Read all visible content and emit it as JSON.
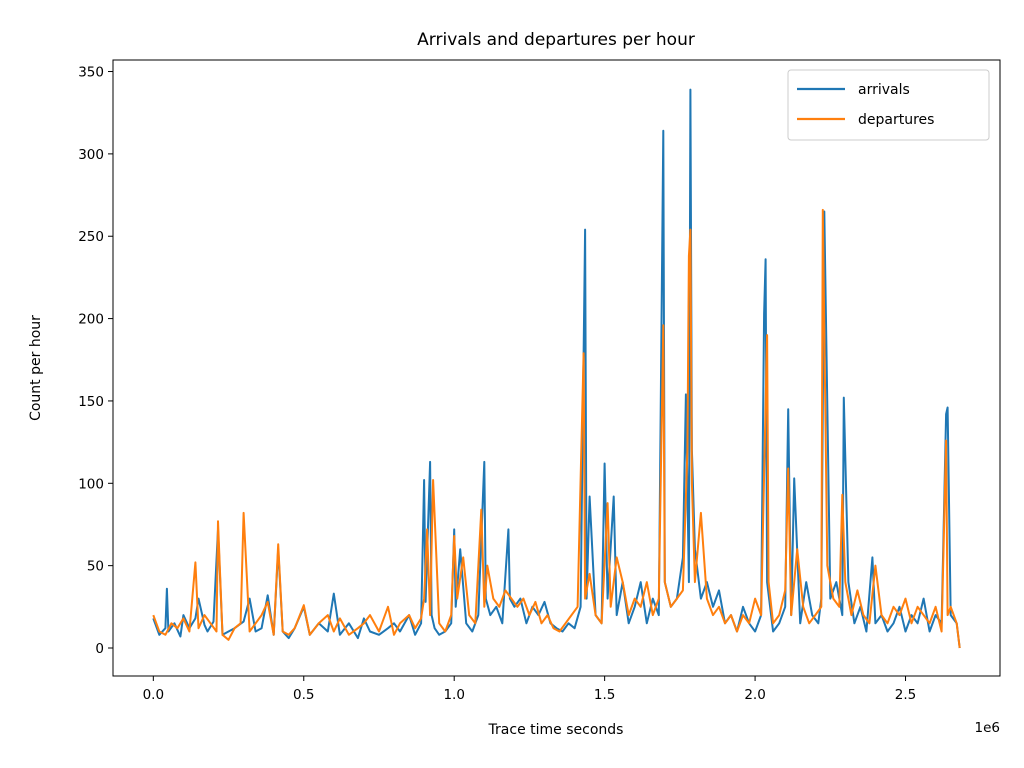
{
  "chart_data": {
    "type": "line",
    "title": "Arrivals and departures per hour",
    "xlabel": "Trace time seconds",
    "ylabel": "Count per hour",
    "x_offset_text": "1e6",
    "xlim": [
      -0.134,
      2.814
    ],
    "ylim": [
      -17,
      357
    ],
    "xticks": [
      0.0,
      0.5,
      1.0,
      1.5,
      2.0,
      2.5
    ],
    "xtick_labels": [
      "0.0",
      "0.5",
      "1.0",
      "1.5",
      "2.0",
      "2.5"
    ],
    "yticks": [
      0,
      50,
      100,
      150,
      200,
      250,
      300,
      350
    ],
    "ytick_labels": [
      "0",
      "50",
      "100",
      "150",
      "200",
      "250",
      "300",
      "350"
    ],
    "grid": false,
    "legend_position": "top-right",
    "series": [
      {
        "name": "arrivals",
        "color": "#1f77b4",
        "x": [
          0.0,
          0.02,
          0.04,
          0.045,
          0.05,
          0.07,
          0.09,
          0.1,
          0.12,
          0.14,
          0.15,
          0.17,
          0.18,
          0.2,
          0.215,
          0.23,
          0.25,
          0.27,
          0.3,
          0.32,
          0.34,
          0.36,
          0.38,
          0.4,
          0.415,
          0.43,
          0.45,
          0.47,
          0.5,
          0.52,
          0.55,
          0.58,
          0.6,
          0.62,
          0.65,
          0.68,
          0.7,
          0.72,
          0.75,
          0.78,
          0.8,
          0.82,
          0.85,
          0.87,
          0.89,
          0.9,
          0.905,
          0.92,
          0.925,
          0.935,
          0.95,
          0.97,
          0.99,
          1.0,
          1.005,
          1.02,
          1.04,
          1.06,
          1.08,
          1.1,
          1.105,
          1.12,
          1.14,
          1.16,
          1.18,
          1.185,
          1.2,
          1.22,
          1.24,
          1.26,
          1.28,
          1.3,
          1.32,
          1.34,
          1.36,
          1.38,
          1.4,
          1.42,
          1.435,
          1.44,
          1.45,
          1.47,
          1.49,
          1.5,
          1.51,
          1.53,
          1.54,
          1.56,
          1.58,
          1.6,
          1.62,
          1.64,
          1.66,
          1.68,
          1.695,
          1.7,
          1.72,
          1.74,
          1.76,
          1.77,
          1.78,
          1.785,
          1.79,
          1.8,
          1.82,
          1.84,
          1.86,
          1.88,
          1.9,
          1.92,
          1.94,
          1.96,
          1.98,
          2.0,
          2.02,
          2.03,
          2.035,
          2.04,
          2.06,
          2.08,
          2.1,
          2.11,
          2.12,
          2.13,
          2.15,
          2.17,
          2.19,
          2.21,
          2.22,
          2.23,
          2.25,
          2.27,
          2.29,
          2.295,
          2.31,
          2.33,
          2.35,
          2.37,
          2.39,
          2.4,
          2.42,
          2.44,
          2.46,
          2.48,
          2.5,
          2.52,
          2.54,
          2.56,
          2.58,
          2.6,
          2.62,
          2.635,
          2.64,
          2.65,
          2.67,
          2.68
        ],
        "y": [
          18,
          8,
          12,
          36,
          10,
          15,
          7,
          20,
          12,
          18,
          30,
          14,
          10,
          16,
          72,
          8,
          10,
          12,
          16,
          30,
          10,
          12,
          32,
          8,
          60,
          10,
          6,
          12,
          25,
          8,
          15,
          10,
          33,
          8,
          15,
          6,
          18,
          10,
          8,
          12,
          15,
          10,
          20,
          8,
          15,
          102,
          28,
          113,
          20,
          12,
          8,
          10,
          15,
          72,
          25,
          60,
          15,
          10,
          20,
          113,
          30,
          20,
          25,
          15,
          72,
          30,
          25,
          30,
          15,
          25,
          20,
          28,
          15,
          12,
          10,
          15,
          12,
          25,
          254,
          30,
          92,
          20,
          15,
          112,
          30,
          92,
          20,
          40,
          15,
          25,
          40,
          15,
          30,
          20,
          314,
          40,
          25,
          30,
          55,
          154,
          40,
          339,
          120,
          60,
          30,
          40,
          25,
          35,
          15,
          20,
          10,
          25,
          15,
          10,
          20,
          203,
          236,
          40,
          10,
          15,
          25,
          145,
          20,
          103,
          15,
          40,
          20,
          15,
          30,
          265,
          30,
          40,
          20,
          152,
          40,
          15,
          25,
          10,
          55,
          15,
          20,
          10,
          15,
          25,
          10,
          20,
          15,
          30,
          10,
          20,
          15,
          142,
          146,
          20,
          15,
          0
        ]
      },
      {
        "name": "departures",
        "color": "#ff7f0e",
        "x": [
          0.0,
          0.02,
          0.04,
          0.06,
          0.08,
          0.1,
          0.12,
          0.14,
          0.15,
          0.17,
          0.19,
          0.21,
          0.215,
          0.23,
          0.25,
          0.27,
          0.29,
          0.3,
          0.32,
          0.34,
          0.36,
          0.38,
          0.4,
          0.415,
          0.43,
          0.45,
          0.47,
          0.5,
          0.52,
          0.55,
          0.58,
          0.6,
          0.62,
          0.65,
          0.68,
          0.7,
          0.72,
          0.75,
          0.78,
          0.8,
          0.82,
          0.85,
          0.87,
          0.89,
          0.9,
          0.91,
          0.92,
          0.93,
          0.95,
          0.97,
          0.99,
          1.0,
          1.01,
          1.03,
          1.05,
          1.07,
          1.09,
          1.1,
          1.11,
          1.13,
          1.15,
          1.17,
          1.19,
          1.21,
          1.23,
          1.25,
          1.27,
          1.29,
          1.31,
          1.33,
          1.35,
          1.37,
          1.39,
          1.41,
          1.43,
          1.435,
          1.45,
          1.47,
          1.49,
          1.51,
          1.52,
          1.54,
          1.56,
          1.58,
          1.6,
          1.62,
          1.64,
          1.66,
          1.68,
          1.695,
          1.7,
          1.72,
          1.74,
          1.76,
          1.775,
          1.78,
          1.785,
          1.79,
          1.8,
          1.82,
          1.84,
          1.86,
          1.88,
          1.9,
          1.92,
          1.94,
          1.96,
          1.98,
          2.0,
          2.02,
          2.04,
          2.045,
          2.06,
          2.08,
          2.1,
          2.11,
          2.12,
          2.14,
          2.16,
          2.18,
          2.2,
          2.22,
          2.225,
          2.24,
          2.26,
          2.28,
          2.29,
          2.3,
          2.32,
          2.34,
          2.36,
          2.38,
          2.4,
          2.42,
          2.44,
          2.46,
          2.48,
          2.5,
          2.52,
          2.54,
          2.56,
          2.58,
          2.6,
          2.62,
          2.635,
          2.64,
          2.65,
          2.67,
          2.68
        ],
        "y": [
          20,
          10,
          8,
          15,
          12,
          18,
          10,
          52,
          12,
          20,
          15,
          10,
          77,
          8,
          5,
          12,
          15,
          82,
          10,
          15,
          20,
          28,
          8,
          63,
          10,
          8,
          12,
          26,
          8,
          15,
          20,
          10,
          18,
          8,
          12,
          15,
          20,
          10,
          25,
          8,
          15,
          20,
          12,
          18,
          30,
          72,
          20,
          102,
          15,
          10,
          20,
          68,
          30,
          55,
          20,
          15,
          84,
          25,
          50,
          30,
          25,
          35,
          30,
          25,
          30,
          20,
          28,
          15,
          20,
          12,
          10,
          15,
          20,
          25,
          179,
          30,
          45,
          20,
          15,
          88,
          25,
          55,
          40,
          20,
          30,
          25,
          40,
          20,
          30,
          196,
          40,
          25,
          30,
          35,
          120,
          238,
          254,
          100,
          40,
          82,
          30,
          20,
          25,
          15,
          20,
          10,
          20,
          15,
          30,
          20,
          190,
          40,
          15,
          20,
          35,
          109,
          20,
          60,
          25,
          15,
          20,
          25,
          266,
          50,
          30,
          25,
          93,
          40,
          20,
          35,
          20,
          15,
          50,
          20,
          15,
          25,
          20,
          30,
          15,
          25,
          20,
          15,
          25,
          10,
          126,
          20,
          25,
          15,
          0
        ]
      }
    ]
  }
}
